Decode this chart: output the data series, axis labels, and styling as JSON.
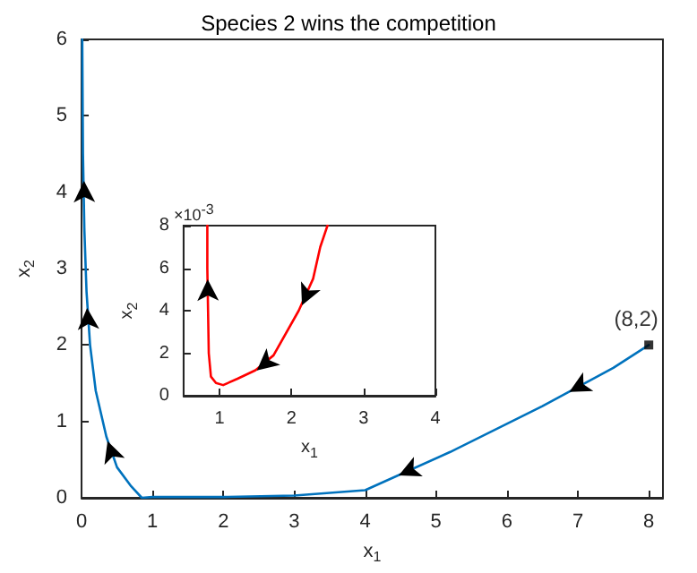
{
  "chart_data": [
    {
      "type": "line",
      "title": "Species 2 wins the competition",
      "xlabel": "x$_{1}$",
      "ylabel": "x$_{2}$",
      "xlim": [
        0,
        8.2
      ],
      "xticks": [
        0,
        1,
        2,
        3,
        4,
        5,
        6,
        7,
        8
      ],
      "ylim": [
        0,
        6
      ],
      "yticks": [
        0,
        1,
        2,
        3,
        4,
        5,
        6
      ],
      "marker": "none",
      "line_style": "solid",
      "series": [
        {
          "color": "#0072bd",
          "x": [
            8,
            7.5,
            6.5,
            5.2,
            4,
            3,
            2,
            1,
            0.85,
            0.7,
            0.5,
            0.35,
            0.2,
            0.12,
            0.07,
            0.04,
            0.02,
            0.01
          ],
          "values": [
            2,
            1.7,
            1.2,
            0.6,
            0.1,
            0.03,
            0.01,
            0.01,
            0,
            0.15,
            0.4,
            0.8,
            1.4,
            2.0,
            2.7,
            3.5,
            4.5,
            6
          ]
        }
      ],
      "annotations": [
        {
          "text": "(8,2)",
          "x": 8,
          "y": 2
        }
      ]
    },
    {
      "type": "line",
      "xlabel": "x$_{1}$",
      "ylabel": "x$_{2}$",
      "xlim": [
        0.5,
        4
      ],
      "xticks": [
        1,
        2,
        3,
        4
      ],
      "ylim": [
        0,
        8
      ],
      "yticks": [
        0,
        2,
        4,
        6,
        8
      ],
      "marker": "none",
      "line_style": "solid",
      "series": [
        {
          "color": "#ff0000",
          "x": [
            2.5,
            2.4,
            2.3,
            2.1,
            1.75,
            1.5,
            1.25,
            1.05,
            0.95,
            0.88,
            0.85,
            0.84,
            0.83,
            0.83
          ],
          "values": [
            8,
            7,
            5.5,
            4,
            1.9,
            1.2,
            0.8,
            0.5,
            0.6,
            0.9,
            2,
            4,
            6,
            8
          ]
        }
      ],
      "annotations": [
        "×10$^{-3}$"
      ]
    }
  ]
}
